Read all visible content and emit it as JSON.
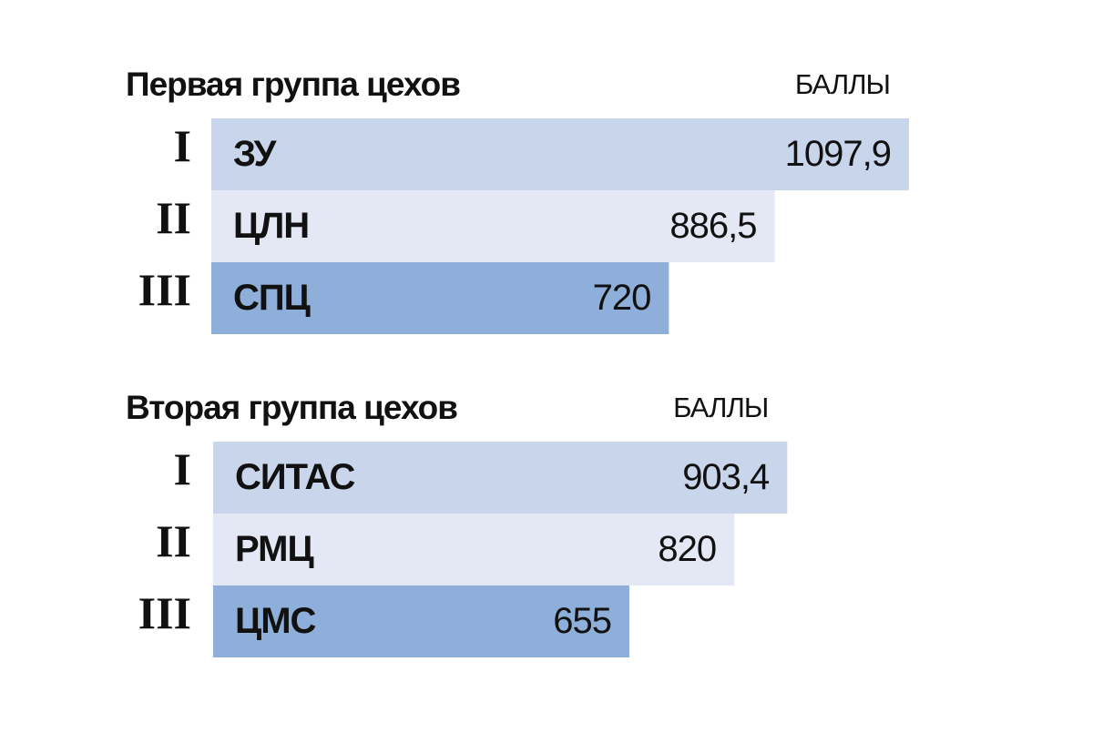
{
  "chart_data": [
    {
      "type": "bar",
      "title": "Первая группа цехов",
      "value_label": "БАЛЛЫ",
      "ranks": [
        "I",
        "II",
        "III"
      ],
      "categories": [
        "ЗУ",
        "ЦЛН",
        "СПЦ"
      ],
      "values": [
        1097.9,
        886.5,
        720
      ],
      "value_labels": [
        "1097,9",
        "886,5",
        "720"
      ],
      "colors": [
        "#c8d5ea",
        "#e3e8f4",
        "#8dafd9"
      ]
    },
    {
      "type": "bar",
      "title": "Вторая группа цехов",
      "value_label": "БАЛЛЫ",
      "ranks": [
        "I",
        "II",
        "III"
      ],
      "categories": [
        "СИТАС",
        "РМЦ",
        "ЦМС"
      ],
      "values": [
        903.4,
        820,
        655
      ],
      "value_labels": [
        "903,4",
        "820",
        "655"
      ],
      "colors": [
        "#c8d5ea",
        "#e3e8f4",
        "#8dafd9"
      ]
    }
  ]
}
